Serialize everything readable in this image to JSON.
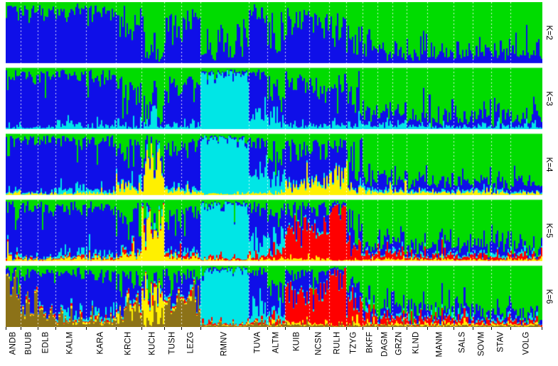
{
  "figure": {
    "kind": "STRUCTURE admixture bar plot",
    "background": "#ffffff",
    "separator_color": "#ffffff"
  },
  "chart_data": {
    "type": "bar",
    "subtype": "stacked-admixture",
    "title": "",
    "xlabel": "",
    "ylabel": "",
    "ylim": [
      0,
      1
    ],
    "grid": false,
    "legend": "none",
    "categories": [
      "ANDB",
      "BUUB",
      "EDLB",
      "KALM",
      "KARA",
      "KRCH",
      "KUCH",
      "TUSH",
      "LEZG",
      "RMNV",
      "TUVA",
      "ALTM",
      "KUIB",
      "NCSN",
      "RULH",
      "TZYG",
      "BKFF",
      "DAGM",
      "GRZN",
      "KLND",
      "MANM",
      "SALS",
      "SOVM",
      "STAV",
      "VOLG"
    ],
    "individuals_per_population": [
      10,
      11,
      12,
      20,
      20,
      17,
      15,
      11,
      13,
      32,
      12,
      12,
      16,
      13,
      11,
      11,
      10,
      10,
      9,
      14,
      17,
      13,
      12,
      13,
      21
    ],
    "clusters": [
      "blue",
      "green",
      "cyan",
      "yellow",
      "red",
      "brown"
    ],
    "cluster_colors": [
      "#0F0FE8",
      "#00DC00",
      "#00E6E6",
      "#FFF000",
      "#FF0000",
      "#8C7218"
    ],
    "stack_order_bottom_to_top": [
      "brown",
      "yellow",
      "red",
      "cyan",
      "blue",
      "green"
    ],
    "separator_style": "white-dashed",
    "panels": [
      {
        "k": 2,
        "label": "K=2",
        "proportions": [
          [
            0.86,
            0.14,
            0,
            0,
            0,
            0
          ],
          [
            0.88,
            0.12,
            0,
            0,
            0,
            0
          ],
          [
            0.87,
            0.13,
            0,
            0,
            0,
            0
          ],
          [
            0.84,
            0.16,
            0,
            0,
            0,
            0
          ],
          [
            0.84,
            0.16,
            0,
            0,
            0,
            0
          ],
          [
            0.62,
            0.38,
            0,
            0,
            0,
            0
          ],
          [
            0.25,
            0.75,
            0,
            0,
            0,
            0
          ],
          [
            0.62,
            0.38,
            0,
            0,
            0,
            0
          ],
          [
            0.75,
            0.25,
            0,
            0,
            0,
            0
          ],
          [
            0.22,
            0.78,
            0,
            0,
            0,
            0
          ],
          [
            0.8,
            0.2,
            0,
            0,
            0,
            0
          ],
          [
            0.5,
            0.5,
            0,
            0,
            0,
            0
          ],
          [
            0.74,
            0.26,
            0,
            0,
            0,
            0
          ],
          [
            0.7,
            0.3,
            0,
            0,
            0,
            0
          ],
          [
            0.66,
            0.34,
            0,
            0,
            0,
            0
          ],
          [
            0.42,
            0.58,
            0,
            0,
            0,
            0
          ],
          [
            0.2,
            0.8,
            0,
            0,
            0,
            0
          ],
          [
            0.22,
            0.78,
            0,
            0,
            0,
            0
          ],
          [
            0.22,
            0.78,
            0,
            0,
            0,
            0
          ],
          [
            0.18,
            0.82,
            0,
            0,
            0,
            0
          ],
          [
            0.17,
            0.83,
            0,
            0,
            0,
            0
          ],
          [
            0.18,
            0.82,
            0,
            0,
            0,
            0
          ],
          [
            0.18,
            0.82,
            0,
            0,
            0,
            0
          ],
          [
            0.18,
            0.82,
            0,
            0,
            0,
            0
          ],
          [
            0.17,
            0.83,
            0,
            0,
            0,
            0
          ]
        ]
      },
      {
        "k": 3,
        "label": "K=3",
        "proportions": [
          [
            0.85,
            0.12,
            0.03,
            0,
            0,
            0
          ],
          [
            0.87,
            0.11,
            0.02,
            0,
            0,
            0
          ],
          [
            0.86,
            0.12,
            0.02,
            0,
            0,
            0
          ],
          [
            0.79,
            0.13,
            0.08,
            0,
            0,
            0
          ],
          [
            0.8,
            0.14,
            0.06,
            0,
            0,
            0
          ],
          [
            0.6,
            0.34,
            0.06,
            0,
            0,
            0
          ],
          [
            0.23,
            0.7,
            0.07,
            0,
            0,
            0
          ],
          [
            0.6,
            0.35,
            0.05,
            0,
            0,
            0
          ],
          [
            0.73,
            0.22,
            0.05,
            0,
            0,
            0
          ],
          [
            0.04,
            0.06,
            0.9,
            0,
            0,
            0
          ],
          [
            0.62,
            0.12,
            0.26,
            0,
            0,
            0
          ],
          [
            0.42,
            0.38,
            0.2,
            0,
            0,
            0
          ],
          [
            0.72,
            0.23,
            0.05,
            0,
            0,
            0
          ],
          [
            0.68,
            0.27,
            0.05,
            0,
            0,
            0
          ],
          [
            0.62,
            0.3,
            0.08,
            0,
            0,
            0
          ],
          [
            0.4,
            0.54,
            0.06,
            0,
            0,
            0
          ],
          [
            0.18,
            0.77,
            0.05,
            0,
            0,
            0
          ],
          [
            0.2,
            0.75,
            0.05,
            0,
            0,
            0
          ],
          [
            0.2,
            0.75,
            0.05,
            0,
            0,
            0
          ],
          [
            0.16,
            0.8,
            0.04,
            0,
            0,
            0
          ],
          [
            0.15,
            0.81,
            0.04,
            0,
            0,
            0
          ],
          [
            0.16,
            0.8,
            0.04,
            0,
            0,
            0
          ],
          [
            0.16,
            0.8,
            0.04,
            0,
            0,
            0
          ],
          [
            0.16,
            0.8,
            0.04,
            0,
            0,
            0
          ],
          [
            0.15,
            0.81,
            0.04,
            0,
            0,
            0
          ]
        ]
      },
      {
        "k": 4,
        "label": "K=4",
        "proportions": [
          [
            0.82,
            0.12,
            0.03,
            0.03,
            0,
            0
          ],
          [
            0.85,
            0.11,
            0.02,
            0.02,
            0,
            0
          ],
          [
            0.84,
            0.12,
            0.02,
            0.02,
            0,
            0
          ],
          [
            0.77,
            0.12,
            0.08,
            0.03,
            0,
            0
          ],
          [
            0.78,
            0.13,
            0.06,
            0.03,
            0,
            0
          ],
          [
            0.54,
            0.3,
            0.05,
            0.11,
            0,
            0
          ],
          [
            0.12,
            0.28,
            0.03,
            0.57,
            0,
            0
          ],
          [
            0.56,
            0.31,
            0.05,
            0.08,
            0,
            0
          ],
          [
            0.69,
            0.21,
            0.05,
            0.05,
            0,
            0
          ],
          [
            0.03,
            0.05,
            0.9,
            0.02,
            0,
            0
          ],
          [
            0.6,
            0.12,
            0.25,
            0.03,
            0,
            0
          ],
          [
            0.41,
            0.36,
            0.18,
            0.05,
            0,
            0
          ],
          [
            0.58,
            0.2,
            0.04,
            0.18,
            0,
            0
          ],
          [
            0.52,
            0.22,
            0.04,
            0.22,
            0,
            0
          ],
          [
            0.42,
            0.2,
            0.05,
            0.33,
            0,
            0
          ],
          [
            0.34,
            0.48,
            0.05,
            0.13,
            0,
            0
          ],
          [
            0.16,
            0.74,
            0.04,
            0.06,
            0,
            0
          ],
          [
            0.18,
            0.72,
            0.04,
            0.06,
            0,
            0
          ],
          [
            0.18,
            0.72,
            0.04,
            0.06,
            0,
            0
          ],
          [
            0.15,
            0.78,
            0.03,
            0.04,
            0,
            0
          ],
          [
            0.14,
            0.79,
            0.03,
            0.04,
            0,
            0
          ],
          [
            0.15,
            0.78,
            0.03,
            0.04,
            0,
            0
          ],
          [
            0.15,
            0.78,
            0.03,
            0.04,
            0,
            0
          ],
          [
            0.15,
            0.79,
            0.03,
            0.03,
            0,
            0
          ],
          [
            0.14,
            0.8,
            0.03,
            0.03,
            0,
            0
          ]
        ]
      },
      {
        "k": 5,
        "label": "K=5",
        "proportions": [
          [
            0.8,
            0.12,
            0.03,
            0.03,
            0.02,
            0
          ],
          [
            0.84,
            0.11,
            0.02,
            0.02,
            0.01,
            0
          ],
          [
            0.83,
            0.12,
            0.02,
            0.02,
            0.01,
            0
          ],
          [
            0.76,
            0.12,
            0.07,
            0.03,
            0.02,
            0
          ],
          [
            0.77,
            0.13,
            0.05,
            0.03,
            0.02,
            0
          ],
          [
            0.52,
            0.29,
            0.05,
            0.1,
            0.04,
            0
          ],
          [
            0.11,
            0.27,
            0.03,
            0.55,
            0.04,
            0
          ],
          [
            0.54,
            0.3,
            0.05,
            0.07,
            0.04,
            0
          ],
          [
            0.67,
            0.21,
            0.05,
            0.04,
            0.03,
            0
          ],
          [
            0.03,
            0.05,
            0.88,
            0.02,
            0.02,
            0
          ],
          [
            0.59,
            0.12,
            0.24,
            0.02,
            0.03,
            0
          ],
          [
            0.39,
            0.34,
            0.15,
            0.04,
            0.08,
            0
          ],
          [
            0.33,
            0.13,
            0.03,
            0.05,
            0.46,
            0
          ],
          [
            0.27,
            0.11,
            0.03,
            0.04,
            0.55,
            0
          ],
          [
            0.07,
            0.05,
            0.01,
            0.01,
            0.86,
            0
          ],
          [
            0.24,
            0.42,
            0.03,
            0.03,
            0.28,
            0
          ],
          [
            0.14,
            0.7,
            0.03,
            0.03,
            0.1,
            0
          ],
          [
            0.16,
            0.68,
            0.03,
            0.03,
            0.1,
            0
          ],
          [
            0.15,
            0.7,
            0.03,
            0.03,
            0.09,
            0
          ],
          [
            0.13,
            0.76,
            0.03,
            0.02,
            0.06,
            0
          ],
          [
            0.12,
            0.77,
            0.03,
            0.02,
            0.06,
            0
          ],
          [
            0.13,
            0.76,
            0.03,
            0.02,
            0.06,
            0
          ],
          [
            0.13,
            0.76,
            0.03,
            0.02,
            0.06,
            0
          ],
          [
            0.13,
            0.77,
            0.03,
            0.02,
            0.05,
            0
          ],
          [
            0.12,
            0.78,
            0.03,
            0.02,
            0.05,
            0
          ]
        ]
      },
      {
        "k": 6,
        "label": "K=6",
        "proportions": [
          [
            0.12,
            0.07,
            0.01,
            0.01,
            0.01,
            0.78
          ],
          [
            0.55,
            0.11,
            0.02,
            0.02,
            0.02,
            0.28
          ],
          [
            0.62,
            0.13,
            0.02,
            0.02,
            0.02,
            0.19
          ],
          [
            0.7,
            0.11,
            0.06,
            0.02,
            0.02,
            0.09
          ],
          [
            0.72,
            0.12,
            0.05,
            0.02,
            0.02,
            0.07
          ],
          [
            0.38,
            0.22,
            0.04,
            0.06,
            0.03,
            0.27
          ],
          [
            0.09,
            0.24,
            0.02,
            0.48,
            0.03,
            0.14
          ],
          [
            0.28,
            0.21,
            0.03,
            0.04,
            0.03,
            0.41
          ],
          [
            0.33,
            0.19,
            0.03,
            0.03,
            0.03,
            0.39
          ],
          [
            0.03,
            0.05,
            0.87,
            0.01,
            0.02,
            0.02
          ],
          [
            0.56,
            0.12,
            0.23,
            0.01,
            0.03,
            0.05
          ],
          [
            0.38,
            0.34,
            0.14,
            0.03,
            0.08,
            0.03
          ],
          [
            0.32,
            0.13,
            0.02,
            0.03,
            0.46,
            0.04
          ],
          [
            0.26,
            0.11,
            0.02,
            0.03,
            0.55,
            0.03
          ],
          [
            0.06,
            0.05,
            0.01,
            0.01,
            0.85,
            0.02
          ],
          [
            0.23,
            0.41,
            0.03,
            0.02,
            0.28,
            0.03
          ],
          [
            0.13,
            0.69,
            0.03,
            0.02,
            0.1,
            0.03
          ],
          [
            0.15,
            0.67,
            0.03,
            0.02,
            0.1,
            0.03
          ],
          [
            0.14,
            0.69,
            0.03,
            0.02,
            0.09,
            0.03
          ],
          [
            0.12,
            0.75,
            0.03,
            0.02,
            0.06,
            0.02
          ],
          [
            0.11,
            0.76,
            0.03,
            0.02,
            0.06,
            0.02
          ],
          [
            0.12,
            0.75,
            0.03,
            0.02,
            0.06,
            0.02
          ],
          [
            0.12,
            0.75,
            0.03,
            0.02,
            0.06,
            0.02
          ],
          [
            0.12,
            0.76,
            0.03,
            0.02,
            0.05,
            0.02
          ],
          [
            0.11,
            0.77,
            0.03,
            0.02,
            0.05,
            0.02
          ]
        ]
      }
    ]
  }
}
